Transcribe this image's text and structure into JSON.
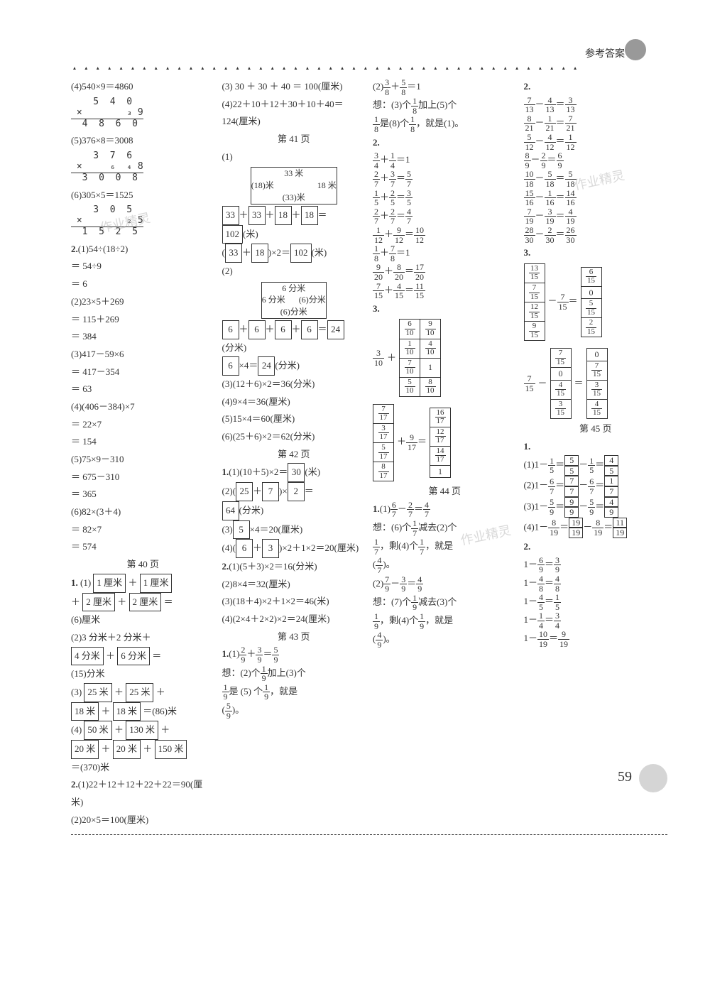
{
  "page": {
    "header_tag": "参考答案",
    "decor": "▲ ▲ ▲ ▲ ▲ ▲ ▲ ▲ ▲ ▲ ▲ ▲ ▲ ▲ ▲ ▲ ▲ ▲ ▲ ▲ ▲ ▲ ▲ ▲ ▲ ▲ ▲ ▲ ▲ ▲ ▲ ▲ ▲ ▲ ▲ ▲ ▲ ▲ ▲ ▲ ▲ ▲ ▲ ▲",
    "page_number": "59"
  },
  "col1": {
    "l1": "(4)540×9＝4860",
    "mult1_r1": "    5  4  0",
    "mult1_r2": " ×        ₃ 9",
    "mult1_r3": "  4  8  6  0",
    "l2": "(5)376×8＝3008",
    "mult2_r1": "    3  7  6",
    "mult2_r2": " ×     ₆  ₄ 8",
    "mult2_r3": "  3  0  0  8",
    "l3": "(6)305×5＝1525",
    "mult3_r1": "    3  0  5",
    "mult3_r2": " ×        ₂ 5",
    "mult3_r3": "  1  5  2  5",
    "p2_header": "2.",
    "p2_1a": "(1)54÷(18÷2)",
    "p2_1b": "＝ 54÷9",
    "p2_1c": "＝ 6",
    "p2_2a": "(2)23×5＋269",
    "p2_2b": "＝ 115＋269",
    "p2_2c": "＝ 384",
    "p2_3a": "(3)417－59×6",
    "p2_3b": "＝ 417－354",
    "p2_3c": "＝ 63",
    "p2_4a": "(4)(406－384)×7",
    "p2_4b": "＝ 22×7",
    "p2_4c": "＝ 154",
    "p2_5a": "(5)75×9－310",
    "p2_5b": "＝ 675－310",
    "p2_5c": "＝ 365",
    "p2_6a": "(6)82×(3＋4)",
    "p2_6b": "＝ 82×7",
    "p2_6c": "＝ 574",
    "page40": "第 40 页",
    "q1_header": "1.",
    "q1_1a": "(1)",
    "q1_1b": "1 厘米",
    "q1_1c": "＋",
    "q1_1d": "1 厘米",
    "q1_1e": "＋",
    "q1_1f": "2 厘米",
    "q1_1g": "＋",
    "q1_1h": "2 厘米",
    "q1_1i": "＝",
    "q1_1j": "(6)厘米",
    "q1_2a": "(2)3 分米＋2 分米＋",
    "q1_2b": "4 分米",
    "q1_2c": "＋",
    "q1_2d": "6 分米",
    "q1_2e": "＝",
    "q1_2f": "(15)分米",
    "q1_3a": "(3)",
    "q1_3b": "25 米",
    "q1_3c": "＋",
    "q1_3d": "25 米",
    "q1_3e": "＋",
    "q1_3f": "18 米",
    "q1_3g": "＋",
    "q1_3h": "18 米",
    "q1_3i": "＝(86)米",
    "q1_4a": "(4)",
    "q1_4b": "50 米",
    "q1_4c": "＋",
    "q1_4d": "130 米",
    "q1_4e": "＋",
    "q1_4f": "20 米",
    "q1_4g": "＋",
    "q1_4h": "20 米",
    "q1_4i": "＋",
    "q1_4j": "150 米",
    "q1_4k": "＝(370)米",
    "q2_header": "2.",
    "q2_1": "(1)22＋12＋12＋22＋22＝90(厘米)",
    "q2_2": "(2)20×5＝100(厘米)"
  },
  "col2": {
    "l1": "(3) 30 ＋ 30 ＋ 40 ＝ 100(厘米)",
    "l2": "(4)22＋10＋12＋30＋10＋40＝124(厘米)",
    "page41": "第 41 页",
    "d1_top": "33 米",
    "d1_left": "(18)米",
    "d1_right": "18 米",
    "d1_bottom": "(33)米",
    "eq1a": "33",
    "eq1b": "33",
    "eq1c": "18",
    "eq1d": "18",
    "eq1e": "102",
    "eq1f": "(米)",
    "eq2a": "33",
    "eq2b": "18",
    "eq2c": "102",
    "eq2d": "(米)",
    "d2_top": "6 分米",
    "d2_left": "6 分米",
    "d2_right": "(6)分米",
    "d2_bottom": "(6)分米",
    "eq3a": "6",
    "eq3b": "6",
    "eq3c": "6",
    "eq3d": "6",
    "eq3e": "24",
    "eq3f": "(分米)",
    "eq4a": "6",
    "eq4b": "24",
    "eq4c": "(分米)",
    "l3": "(3)(12＋6)×2＝36(分米)",
    "l4": "(4)9×4＝36(厘米)",
    "l5": "(5)15×4＝60(厘米)",
    "l6": "(6)(25＋6)×2＝62(分米)",
    "page42": "第 42 页",
    "p1_header": "1.",
    "p1_1a": "(1)(10＋5)×2＝",
    "p1_1b": "30",
    "p1_1c": "(米)",
    "p1_2a": "(2)(",
    "p1_2b": "25",
    "p1_2c": "＋",
    "p1_2d": "7",
    "p1_2e": ")×",
    "p1_2f": "2",
    "p1_2g": "＝",
    "p1_2h": "64",
    "p1_2i": "(分米)",
    "p1_3a": "(3)",
    "p1_3b": "5",
    "p1_3c": "×4＝20(厘米)",
    "p1_4a": "(4)(",
    "p1_4b": "6",
    "p1_4c": "＋",
    "p1_4d": "3",
    "p1_4e": ")×2＋1×2＝20(厘米)",
    "p2_header": "2.",
    "p2_1": "(1)(5＋3)×2＝16(分米)",
    "p2_2": "(2)8×4＝32(厘米)",
    "p2_3": "(3)(18＋4)×2＋1×2＝46(米)",
    "p2_4": "(4)(2×4＋2×2)×2＝24(厘米)",
    "page43": "第 43 页",
    "q1_header": "1.",
    "q1_1_lhs_a": "2",
    "q1_1_lhs_b": "9",
    "q1_1_lhs_c": "3",
    "q1_1_lhs_d": "9",
    "q1_1_rhs_a": "5",
    "q1_1_rhs_b": "9",
    "think1a": "想：(2)个",
    "think1b": "1",
    "think1c": "9",
    "think1d": "加上(3)个",
    "think1e": "1",
    "think1f": "9",
    "think1g": "是 (5) 个",
    "think1h": "1",
    "think1i": "9",
    "think1j": "，就是",
    "think1k": "(",
    "think1l": "5",
    "think1m": "9",
    "think1n": ")。"
  },
  "col3": {
    "q1_2_pre": "(2)",
    "q1_2_a": "3",
    "q1_2_b": "8",
    "q1_2_c": "5",
    "q1_2_d": "8",
    "think2a": "想：(3)个",
    "think2b": "1",
    "think2c": "8",
    "think2d": "加上(5)个",
    "think2e": "1",
    "think2f": "8",
    "think2g": "是(8)个",
    "think2h": "1",
    "think2i": "8",
    "think2j": "，就是(1)。",
    "p2_header": "2.",
    "eq_rows": [
      {
        "a": "3",
        "b": "4",
        "c": "1",
        "d": "4",
        "r": "1"
      },
      {
        "a": "2",
        "b": "7",
        "c": "3",
        "d": "7",
        "rn": "5",
        "rd": "7"
      },
      {
        "a": "1",
        "b": "5",
        "c": "2",
        "d": "5",
        "rn": "3",
        "rd": "5"
      },
      {
        "a": "2",
        "b": "7",
        "c": "2",
        "d": "7",
        "rn": "4",
        "rd": "7"
      },
      {
        "a": "1",
        "b": "12",
        "c": "9",
        "d": "12",
        "rn": "10",
        "rd": "12"
      },
      {
        "a": "1",
        "b": "8",
        "c": "7",
        "d": "8",
        "r": "1"
      },
      {
        "a": "9",
        "b": "20",
        "c": "8",
        "d": "20",
        "rn": "17",
        "rd": "20"
      },
      {
        "a": "7",
        "b": "15",
        "c": "4",
        "d": "15",
        "rn": "11",
        "rd": "15"
      }
    ],
    "p3_header": "3.",
    "grid1": {
      "left": {
        "n": "3",
        "d": "10"
      },
      "plus": "＋",
      "cells": [
        [
          "6/10",
          "9/10"
        ],
        [
          "1/10",
          "4/10"
        ],
        [
          "7/10",
          "1"
        ],
        [
          "5/10",
          "8/10"
        ]
      ]
    },
    "grid2": {
      "left": "",
      "plus_n": "9",
      "plus_d": "17",
      "cells": [
        [
          "7/17",
          "16/17"
        ],
        [
          "3/17",
          "12/17"
        ],
        [
          "5/17",
          "14/17"
        ],
        [
          "8/17",
          "1"
        ]
      ]
    },
    "page44": "第 44 页",
    "q1_header": "1.",
    "q1_1_pre": "(1)",
    "q1_1a": "6",
    "q1_1b": "7",
    "q1_1c": "2",
    "q1_1d": "7",
    "q1_1e": "4",
    "q1_1f": "7",
    "think3a": "想：(6)个",
    "think3b": "1",
    "think3c": "7",
    "think3d": "减去(2)个",
    "think3e": "1",
    "think3f": "7",
    "think3g": "，剩(4)个",
    "think3h": "1",
    "think3i": "7",
    "think3j": "，就是",
    "think3k": "(",
    "think3l": "4",
    "think3m": "7",
    "think3n": ")。",
    "q1_2a": "7",
    "q1_2b": "9",
    "q1_2c": "3",
    "q1_2d": "9",
    "q1_2e": "4",
    "q1_2f": "9",
    "think4a": "想：(7)个",
    "think4b": "1",
    "think4c": "9",
    "think4d": "减去(3)个",
    "think4e": "1",
    "think4f": "9",
    "think4g": "，剩(4)个",
    "think4h": "1",
    "think4i": "9",
    "think4j": "，就是",
    "think4k": "(",
    "think4l": "4",
    "think4m": "9",
    "think4n": ")。"
  },
  "col4": {
    "p2_header": "2.",
    "eq_rows": [
      {
        "a": "7",
        "b": "13",
        "c": "4",
        "d": "13",
        "rn": "3",
        "rd": "13"
      },
      {
        "a": "8",
        "b": "21",
        "c": "1",
        "d": "21",
        "rn": "7",
        "rd": "21"
      },
      {
        "a": "5",
        "b": "12",
        "c": "4",
        "d": "12",
        "rn": "1",
        "rd": "12"
      },
      {
        "a": "8",
        "b": "9",
        "c": "2",
        "d": "9",
        "rn": "6",
        "rd": "9"
      },
      {
        "a": "10",
        "b": "18",
        "c": "5",
        "d": "18",
        "rn": "5",
        "rd": "18"
      },
      {
        "a": "15",
        "b": "16",
        "c": "1",
        "d": "16",
        "rn": "14",
        "rd": "16"
      },
      {
        "a": "7",
        "b": "19",
        "c": "3",
        "d": "19",
        "rn": "4",
        "rd": "19"
      },
      {
        "a": "28",
        "b": "30",
        "c": "2",
        "d": "30",
        "rn": "26",
        "rd": "30"
      }
    ],
    "p3_header": "3.",
    "grid3": {
      "minus_n": "7",
      "minus_d": "15",
      "cells": [
        [
          "13/15",
          "6/15"
        ],
        [
          "7/15",
          "0"
        ],
        [
          "12/15",
          "5/15"
        ],
        [
          "9/15",
          "2/15"
        ]
      ]
    },
    "grid4": {
      "left_n": "7",
      "left_d": "15",
      "minus": "－",
      "cells": [
        [
          "7/15",
          "0"
        ],
        [
          "0",
          "7/15"
        ],
        [
          "4/15",
          "3/15"
        ],
        [
          "3/15",
          "4/15"
        ]
      ]
    },
    "page45": "第 45 页",
    "q1_header": "1.",
    "q1_rows": [
      {
        "pre": "(1)1－",
        "a": "1",
        "b": "5",
        "bx1": "5",
        "bx2": "5",
        "mid": "－",
        "c": "1",
        "d": "5",
        "bx3": "4",
        "bx4": "5"
      },
      {
        "pre": "(2)1－",
        "a": "6",
        "b": "7",
        "bx1": "7",
        "bx2": "7",
        "mid": "－",
        "c": "6",
        "d": "7",
        "bx3": "1",
        "bx4": "7"
      },
      {
        "pre": "(3)1－",
        "a": "5",
        "b": "9",
        "bx1": "9",
        "bx2": "9",
        "mid": "－",
        "c": "5",
        "d": "9",
        "bx3": "4",
        "bx4": "9"
      },
      {
        "pre": "(4)1－",
        "a": "8",
        "b": "19",
        "bx1": "19",
        "bx2": "19",
        "mid": "－",
        "c": "8",
        "d": "19",
        "bx3": "11",
        "bx4": "19"
      }
    ],
    "p2b_header": "2.",
    "p2b_rows": [
      {
        "a": "6",
        "b": "9",
        "rn": "3",
        "rd": "9"
      },
      {
        "a": "4",
        "b": "8",
        "rn": "4",
        "rd": "8"
      },
      {
        "a": "4",
        "b": "5",
        "rn": "1",
        "rd": "5"
      },
      {
        "a": "1",
        "b": "4",
        "rn": "3",
        "rd": "4"
      },
      {
        "a": "10",
        "b": "19",
        "rn": "9",
        "rd": "19"
      }
    ]
  }
}
